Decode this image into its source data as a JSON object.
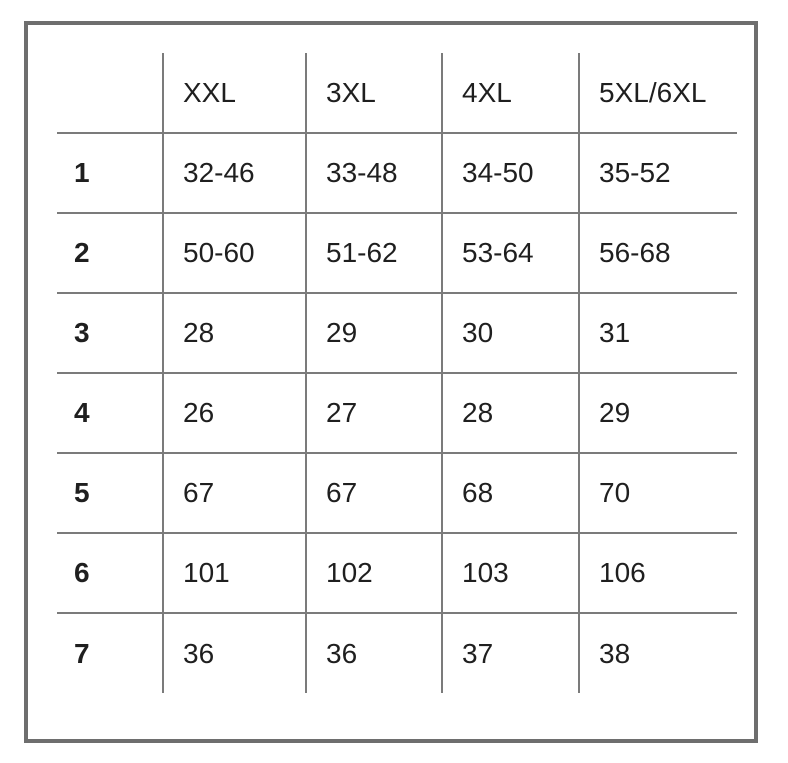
{
  "chart_data": {
    "type": "table",
    "columns": [
      "",
      "XXL",
      "3XL",
      "4XL",
      "5XL/6XL"
    ],
    "rows": [
      {
        "label": "1",
        "values": [
          "32-46",
          "33-48",
          "34-50",
          "35-52"
        ]
      },
      {
        "label": "2",
        "values": [
          "50-60",
          "51-62",
          "53-64",
          "56-68"
        ]
      },
      {
        "label": "3",
        "values": [
          "28",
          "29",
          "30",
          "31"
        ]
      },
      {
        "label": "4",
        "values": [
          "26",
          "27",
          "28",
          "29"
        ]
      },
      {
        "label": "5",
        "values": [
          "67",
          "67",
          "68",
          "70"
        ]
      },
      {
        "label": "6",
        "values": [
          "101",
          "102",
          "103",
          "106"
        ]
      },
      {
        "label": "7",
        "values": [
          "36",
          "36",
          "37",
          "38"
        ]
      }
    ],
    "layout": {
      "grid": "on",
      "header_row": true,
      "label_column": true,
      "legend": "none"
    }
  },
  "colors": {
    "background": "#ffffff",
    "text": "#1f1f1f",
    "grid_line": "#7b7b7b",
    "outer_border": "#6e6e6e"
  }
}
